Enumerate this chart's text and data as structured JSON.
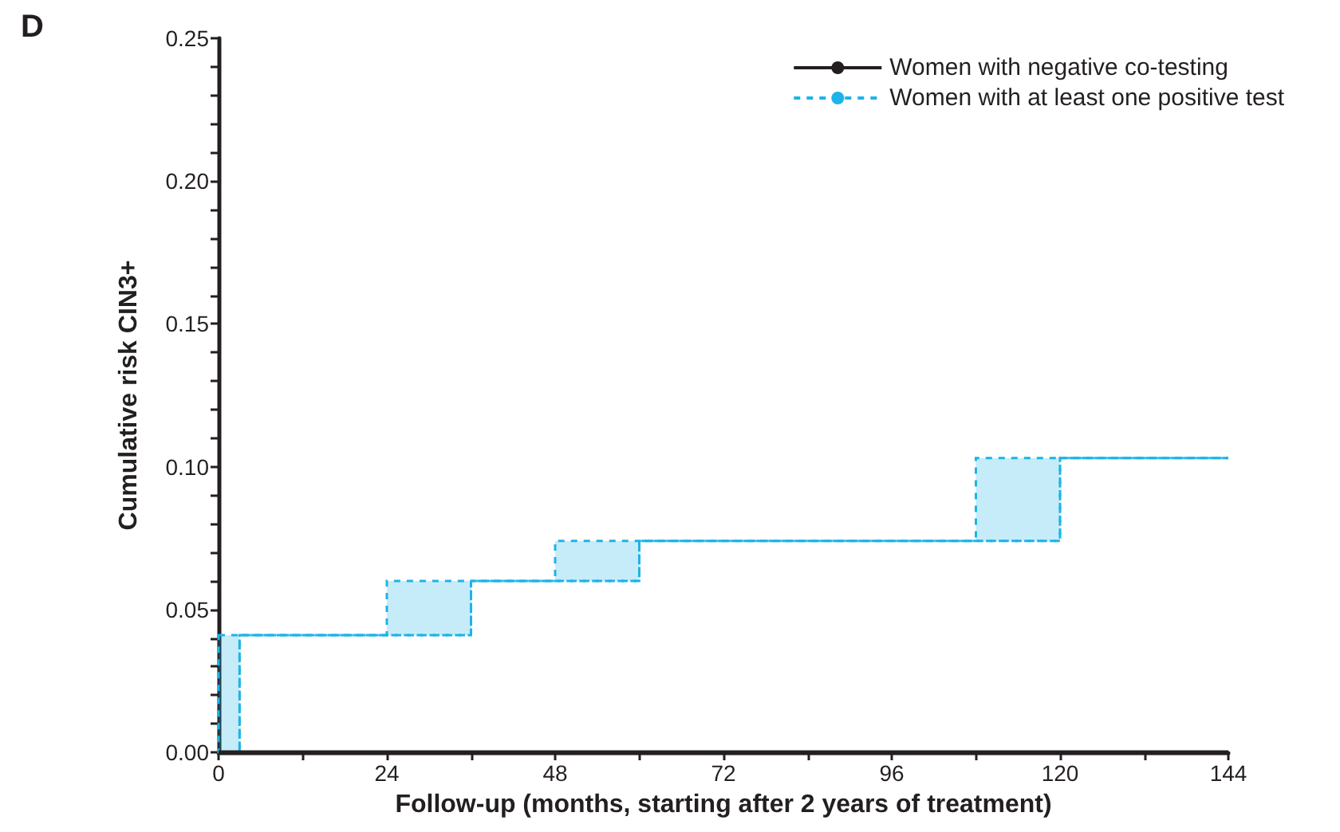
{
  "chart_data": {
    "type": "step",
    "title": "D",
    "xlabel": "Follow-up (months, starting after 2 years of treatment)",
    "ylabel": "Cumulative risk CIN3+",
    "xlim": [
      0,
      144
    ],
    "xticks": [
      0,
      {
        "value": 12,
        "label": null
      },
      24,
      {
        "value": 36,
        "label": null
      },
      48,
      {
        "value": 60,
        "label": null
      },
      72,
      {
        "value": 84,
        "label": null
      },
      96,
      {
        "value": 108,
        "label": null
      },
      120,
      {
        "value": 132,
        "label": null
      },
      144
    ],
    "ylim": [
      0,
      0.25
    ],
    "yticks": [
      {
        "value": 0,
        "label": "0.00"
      },
      {
        "value": 0.01,
        "label": null
      },
      {
        "value": 0.02,
        "label": null
      },
      {
        "value": 0.03,
        "label": null
      },
      {
        "value": 0.04,
        "label": null
      },
      {
        "value": 0.05,
        "label": "0.05"
      },
      {
        "value": 0.06,
        "label": null
      },
      {
        "value": 0.07,
        "label": null
      },
      {
        "value": 0.08,
        "label": null
      },
      {
        "value": 0.09,
        "label": null
      },
      {
        "value": 0.1,
        "label": "0.10"
      },
      {
        "value": 0.11,
        "label": null
      },
      {
        "value": 0.12,
        "label": null
      },
      {
        "value": 0.13,
        "label": null
      },
      {
        "value": 0.14,
        "label": null
      },
      {
        "value": 0.15,
        "label": "0.15"
      },
      {
        "value": 0.16,
        "label": null
      },
      {
        "value": 0.17,
        "label": null
      },
      {
        "value": 0.18,
        "label": null
      },
      {
        "value": 0.19,
        "label": null
      },
      {
        "value": 0.2,
        "label": "0.20"
      },
      {
        "value": 0.21,
        "label": null
      },
      {
        "value": 0.22,
        "label": null
      },
      {
        "value": 0.23,
        "label": null
      },
      {
        "value": 0.24,
        "label": null
      },
      {
        "value": 0.25,
        "label": "0.25"
      }
    ],
    "grid": false,
    "legend": "top right",
    "marker": "none",
    "series": [
      {
        "name": "Women with negative co-testing",
        "color": "#231f20",
        "line_style": "solid",
        "x": [
          0,
          144
        ],
        "values": [
          0,
          0
        ]
      },
      {
        "name": "Women with at least one positive test",
        "color": "#1cb4e8",
        "line_style": "dashed",
        "x": [
          0,
          3,
          24,
          36,
          48,
          60,
          108,
          120,
          144
        ],
        "values": [
          0,
          0.041,
          0.041,
          0.06,
          0.06,
          0.074,
          0.074,
          0.103,
          0.103
        ],
        "lower": [
          0,
          0.041,
          0.041,
          0.06,
          0.06,
          0.074,
          0.074,
          0.103,
          0.103
        ],
        "upper": [
          0.041,
          0.041,
          0.06,
          0.06,
          0.074,
          0.074,
          0.103,
          0.103,
          0.103
        ]
      }
    ]
  }
}
